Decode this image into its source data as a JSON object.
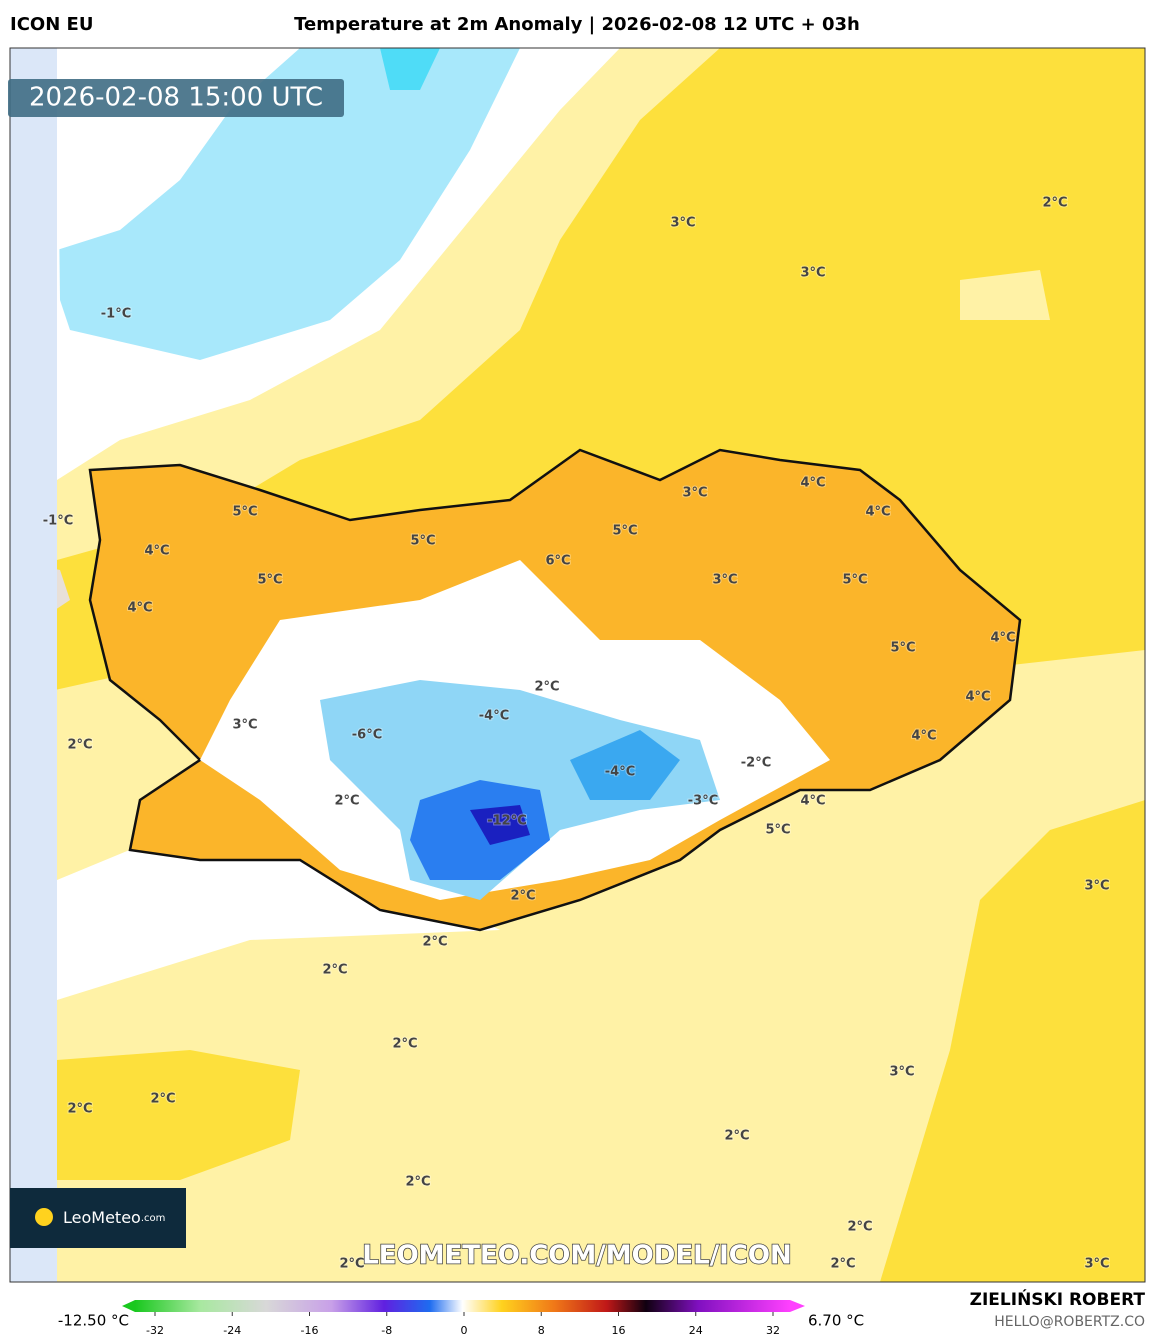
{
  "header": {
    "model": "ICON EU",
    "title": "Temperature at 2m Anomaly | 2026-02-08 12 UTC + 03h",
    "valid_time": "2026-02-08 15:00 UTC"
  },
  "map": {
    "contour_labels": [
      "3°C",
      "2°C",
      "3°C",
      "-1°C",
      "5°C",
      "-1°C",
      "4°C",
      "5°C",
      "4°C",
      "5°C",
      "6°C",
      "5°C",
      "3°C",
      "4°C",
      "4°C",
      "3°C",
      "5°C",
      "4°C",
      "5°C",
      "2°C",
      "4°C",
      "4°C",
      "3°C",
      "-6°C",
      "-4°C",
      "2°C",
      "-2°C",
      "-4°C",
      "2°C",
      "4°C",
      "-3°C",
      "-12°C",
      "5°C",
      "3°C",
      "2°C",
      "2°C",
      "2°C",
      "2°C",
      "3°C",
      "2°C",
      "2°C",
      "2°C",
      "2°C",
      "2°C",
      "2°C",
      "2°C",
      "3°C"
    ],
    "watermark": "LEOMETEO.COM/MODEL/ICON",
    "logo": {
      "name": "LeoMeteo",
      "suffix": ".com"
    }
  },
  "colorbar": {
    "min_label": "-12.50 °C",
    "max_label": "6.70 °C",
    "ticks": [
      -32,
      -24,
      -16,
      -8,
      0,
      8,
      16,
      24,
      32
    ]
  },
  "footer": {
    "author": "ZIELIŃSKI ROBERT",
    "contact": "HELLO@ROBERTZ.CO"
  }
}
